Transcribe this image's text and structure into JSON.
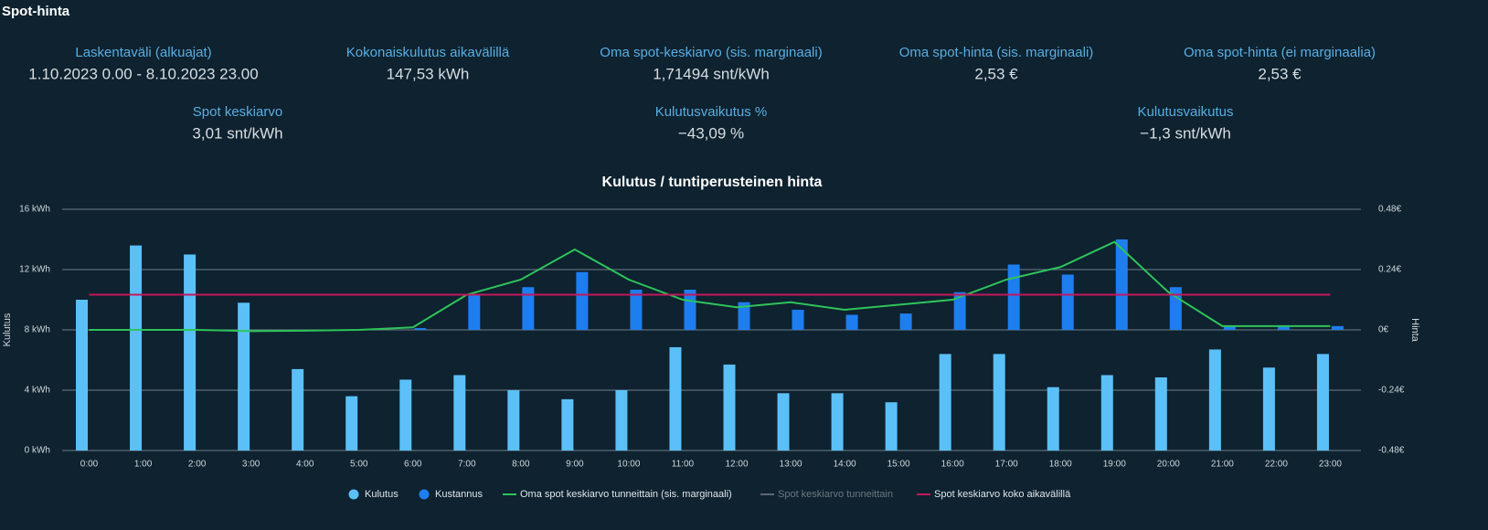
{
  "header": {
    "title": "Spot-hinta"
  },
  "stats": [
    {
      "label": "Laskentaväli (alkuajat)",
      "value": "1.10.2023 0.00 - 8.10.2023 23.00"
    },
    {
      "label": "Kokonaiskulutus aikavälillä",
      "value": "147,53 kWh"
    },
    {
      "label": "Oma spot-keskiarvo (sis. marginaali)",
      "value": "1,71494 snt/kWh"
    },
    {
      "label": "Oma spot-hinta (sis. marginaali)",
      "value": "2,53 €"
    },
    {
      "label": "Oma spot-hinta (ei marginaalia)",
      "value": "2,53 €"
    },
    {
      "label": "Spot keskiarvo",
      "value": "3,01 snt/kWh"
    },
    {
      "label": "Kulutusvaikutus %",
      "value": "−43,09 %"
    },
    {
      "label": "Kulutusvaikutus",
      "value": "−1,3 snt/kWh"
    }
  ],
  "chart_data": {
    "type": "bar",
    "title": "Kulutus / tuntiperusteinen hinta",
    "ylabel": "Kulutus",
    "y2label": "Hinta",
    "categories": [
      "0:00",
      "1:00",
      "2:00",
      "3:00",
      "4:00",
      "5:00",
      "6:00",
      "7:00",
      "8:00",
      "9:00",
      "10:00",
      "11:00",
      "12:00",
      "13:00",
      "14:00",
      "15:00",
      "16:00",
      "17:00",
      "18:00",
      "19:00",
      "20:00",
      "21:00",
      "22:00",
      "23:00"
    ],
    "ylim": [
      0,
      16
    ],
    "yticks": [
      {
        "value": 0,
        "label": "0 kWh"
      },
      {
        "value": 4,
        "label": "4 kWh"
      },
      {
        "value": 8,
        "label": "8 kWh"
      },
      {
        "value": 12,
        "label": "12 kWh"
      },
      {
        "value": 16,
        "label": "16 kWh"
      }
    ],
    "y2lim": [
      -0.48,
      0.48
    ],
    "y2ticks": [
      {
        "value": -0.48,
        "label": "-0.48€"
      },
      {
        "value": -0.24,
        "label": "-0.24€"
      },
      {
        "value": 0,
        "label": "0€"
      },
      {
        "value": 0.24,
        "label": "0.24€"
      },
      {
        "value": 0.48,
        "label": "0.48€"
      }
    ],
    "grid": true,
    "series": [
      {
        "name": "Kulutus",
        "type": "bar",
        "color": "#5bc0f8",
        "values": [
          10.0,
          13.6,
          13.0,
          9.8,
          5.4,
          3.6,
          4.7,
          5.0,
          4.0,
          3.4,
          4.0,
          6.85,
          5.7,
          3.8,
          3.8,
          3.2,
          6.4,
          6.4,
          4.2,
          5.0,
          4.85,
          6.7,
          5.5,
          6.4
        ]
      },
      {
        "name": "Kustannus",
        "type": "bar",
        "axis": "y2",
        "color": "#1e7ef0",
        "values": [
          0,
          0,
          0,
          0,
          0,
          0,
          0.007,
          0.14,
          0.17,
          0.23,
          0.16,
          0.16,
          0.11,
          0.08,
          0.06,
          0.065,
          0.15,
          0.26,
          0.22,
          0.36,
          0.17,
          0.015,
          0.015,
          0.015
        ]
      },
      {
        "name": "Oma spot keskiarvo tunneittain (sis. marginaali)",
        "type": "line",
        "axis": "y2",
        "color": "#2ec45a",
        "values": [
          0,
          0,
          0,
          -0.005,
          -0.003,
          0,
          0.01,
          0.14,
          0.2,
          0.32,
          0.2,
          0.12,
          0.09,
          0.11,
          0.08,
          0.1,
          0.12,
          0.2,
          0.25,
          0.35,
          0.15,
          0.015,
          0.015,
          0.015
        ]
      },
      {
        "name": "Spot keskiarvo tunneittain",
        "type": "line",
        "axis": "y2",
        "color": "#7a8590",
        "hidden": true
      },
      {
        "name": "Spot keskiarvo koko aikavälillä",
        "type": "line",
        "axis": "y2",
        "color": "#c2185b",
        "values": [
          0.14,
          0.14,
          0.14,
          0.14,
          0.14,
          0.14,
          0.14,
          0.14,
          0.14,
          0.14,
          0.14,
          0.14,
          0.14,
          0.14,
          0.14,
          0.14,
          0.14,
          0.14,
          0.14,
          0.14,
          0.14,
          0.14,
          0.14,
          0.14
        ]
      }
    ]
  }
}
